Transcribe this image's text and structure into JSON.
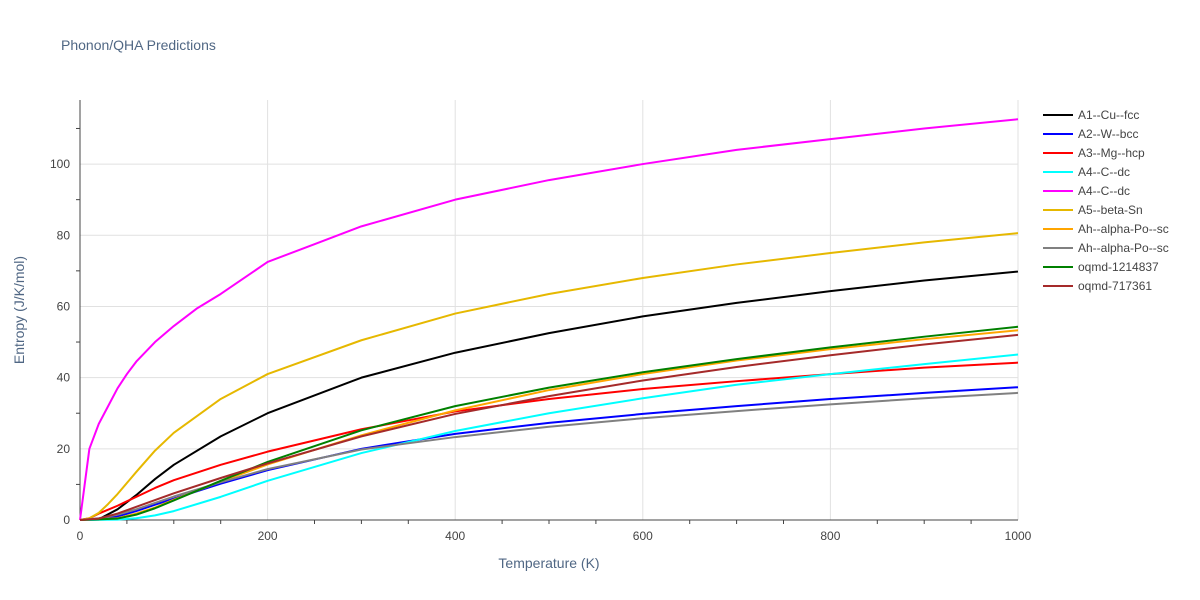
{
  "chart_data": {
    "type": "line",
    "title": "Phonon/QHA Predictions",
    "xlabel": "Temperature (K)",
    "ylabel": "Entropy (J/K/mol)",
    "xlim": [
      0,
      1000
    ],
    "ylim": [
      0,
      118
    ],
    "x_ticks": [
      0,
      200,
      400,
      600,
      800,
      1000
    ],
    "y_ticks": [
      0,
      20,
      40,
      60,
      80,
      100
    ],
    "grid": true,
    "legend_position": "right",
    "series": [
      {
        "name": "A1--Cu--fcc",
        "color": "#000000",
        "points": [
          [
            0,
            0
          ],
          [
            20,
            0.2
          ],
          [
            40,
            3
          ],
          [
            60,
            7
          ],
          [
            80,
            11.5
          ],
          [
            100,
            15.5
          ],
          [
            150,
            23.5
          ],
          [
            200,
            30
          ],
          [
            300,
            40
          ],
          [
            400,
            47
          ],
          [
            500,
            52.5
          ],
          [
            600,
            57.2
          ],
          [
            700,
            61
          ],
          [
            800,
            64.3
          ],
          [
            900,
            67.3
          ],
          [
            1000,
            69.8
          ]
        ]
      },
      {
        "name": "A2--W--bcc",
        "color": "#0000ff",
        "points": [
          [
            0,
            0
          ],
          [
            20,
            0.1
          ],
          [
            40,
            1
          ],
          [
            60,
            2.5
          ],
          [
            80,
            4.3
          ],
          [
            100,
            6
          ],
          [
            150,
            10.2
          ],
          [
            200,
            14
          ],
          [
            300,
            20
          ],
          [
            400,
            24.2
          ],
          [
            500,
            27.3
          ],
          [
            600,
            29.8
          ],
          [
            700,
            32
          ],
          [
            800,
            34
          ],
          [
            900,
            35.7
          ],
          [
            1000,
            37.3
          ]
        ]
      },
      {
        "name": "A3--Mg--hcp",
        "color": "#ff0000",
        "points": [
          [
            0,
            0
          ],
          [
            10,
            0.5
          ],
          [
            20,
            1.8
          ],
          [
            40,
            4
          ],
          [
            60,
            6.5
          ],
          [
            80,
            9
          ],
          [
            100,
            11.2
          ],
          [
            150,
            15.5
          ],
          [
            200,
            19.2
          ],
          [
            300,
            25.5
          ],
          [
            400,
            30.5
          ],
          [
            500,
            34
          ],
          [
            600,
            36.8
          ],
          [
            700,
            39
          ],
          [
            800,
            41
          ],
          [
            900,
            42.8
          ],
          [
            1000,
            44.2
          ]
        ]
      },
      {
        "name": "A4--C--dc",
        "color": "#00ffff",
        "points": [
          [
            0,
            0
          ],
          [
            40,
            0.1
          ],
          [
            60,
            0.5
          ],
          [
            80,
            1.3
          ],
          [
            100,
            2.5
          ],
          [
            150,
            6.5
          ],
          [
            200,
            11
          ],
          [
            300,
            18.8
          ],
          [
            400,
            25
          ],
          [
            500,
            30
          ],
          [
            600,
            34.2
          ],
          [
            700,
            38
          ],
          [
            800,
            41
          ],
          [
            900,
            43.8
          ],
          [
            1000,
            46.5
          ]
        ]
      },
      {
        "name": "A4--C--dc",
        "color": "#ff00ff",
        "points": [
          [
            0,
            0
          ],
          [
            10,
            20
          ],
          [
            20,
            27
          ],
          [
            30,
            32
          ],
          [
            40,
            37
          ],
          [
            50,
            41
          ],
          [
            60,
            44.5
          ],
          [
            80,
            50
          ],
          [
            100,
            54.5
          ],
          [
            125,
            59.5
          ],
          [
            150,
            63.5
          ],
          [
            200,
            72.5
          ],
          [
            250,
            77.5
          ],
          [
            300,
            82.5
          ],
          [
            400,
            90
          ],
          [
            500,
            95.5
          ],
          [
            600,
            100
          ],
          [
            700,
            104
          ],
          [
            800,
            107
          ],
          [
            900,
            110
          ],
          [
            1000,
            112.6
          ]
        ]
      },
      {
        "name": "A5--beta-Sn",
        "color": "#e6b800",
        "points": [
          [
            0,
            0
          ],
          [
            10,
            0.5
          ],
          [
            20,
            2
          ],
          [
            30,
            4.5
          ],
          [
            40,
            7.3
          ],
          [
            60,
            13.5
          ],
          [
            80,
            19.5
          ],
          [
            100,
            24.5
          ],
          [
            150,
            34
          ],
          [
            200,
            41
          ],
          [
            300,
            50.5
          ],
          [
            400,
            58
          ],
          [
            500,
            63.5
          ],
          [
            600,
            68
          ],
          [
            700,
            71.8
          ],
          [
            800,
            75
          ],
          [
            900,
            78
          ],
          [
            1000,
            80.6
          ]
        ]
      },
      {
        "name": "Ah--alpha-Po--sc",
        "color": "#ffa500",
        "points": [
          [
            0,
            0
          ],
          [
            40,
            0.5
          ],
          [
            60,
            1.8
          ],
          [
            80,
            3.5
          ],
          [
            100,
            5.7
          ],
          [
            150,
            10.8
          ],
          [
            200,
            15.6
          ],
          [
            300,
            23.8
          ],
          [
            400,
            30.8
          ],
          [
            500,
            36.5
          ],
          [
            600,
            41
          ],
          [
            700,
            44.8
          ],
          [
            800,
            48
          ],
          [
            900,
            50.8
          ],
          [
            1000,
            53.3
          ]
        ]
      },
      {
        "name": "Ah--alpha-Po--sc",
        "color": "#808080",
        "points": [
          [
            0,
            0
          ],
          [
            20,
            0.5
          ],
          [
            40,
            1.5
          ],
          [
            60,
            3
          ],
          [
            80,
            4.8
          ],
          [
            100,
            6.6
          ],
          [
            150,
            10.6
          ],
          [
            200,
            14.3
          ],
          [
            300,
            19.8
          ],
          [
            400,
            23.3
          ],
          [
            500,
            26.2
          ],
          [
            600,
            28.6
          ],
          [
            700,
            30.6
          ],
          [
            800,
            32.5
          ],
          [
            900,
            34.2
          ],
          [
            1000,
            35.7
          ]
        ]
      },
      {
        "name": "oqmd-1214837",
        "color": "#008000",
        "points": [
          [
            0,
            0
          ],
          [
            40,
            0.4
          ],
          [
            60,
            1.5
          ],
          [
            80,
            3.3
          ],
          [
            100,
            5.5
          ],
          [
            150,
            11
          ],
          [
            200,
            16.3
          ],
          [
            300,
            25.2
          ],
          [
            400,
            32
          ],
          [
            500,
            37.2
          ],
          [
            600,
            41.5
          ],
          [
            700,
            45.2
          ],
          [
            800,
            48.5
          ],
          [
            900,
            51.5
          ],
          [
            1000,
            54.3
          ]
        ]
      },
      {
        "name": "oqmd-717361",
        "color": "#a52a2a",
        "points": [
          [
            0,
            0
          ],
          [
            20,
            0.4
          ],
          [
            40,
            1.8
          ],
          [
            60,
            3.7
          ],
          [
            80,
            5.6
          ],
          [
            100,
            7.5
          ],
          [
            150,
            11.8
          ],
          [
            200,
            15.9
          ],
          [
            300,
            23.5
          ],
          [
            400,
            29.8
          ],
          [
            500,
            34.8
          ],
          [
            600,
            39.2
          ],
          [
            700,
            43
          ],
          [
            800,
            46.3
          ],
          [
            900,
            49.3
          ],
          [
            1000,
            52
          ]
        ]
      }
    ]
  }
}
